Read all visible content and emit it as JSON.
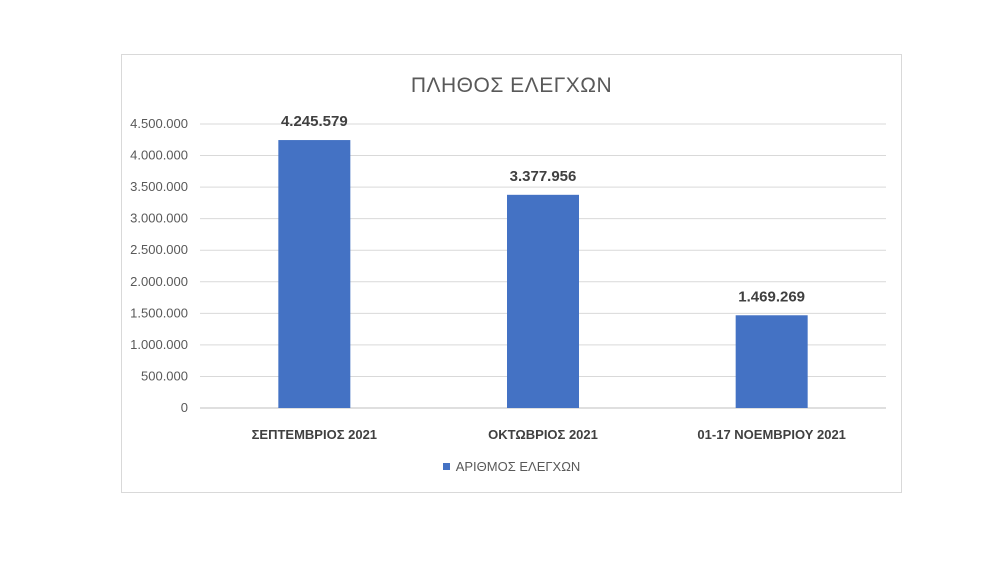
{
  "chart_data": {
    "type": "bar",
    "title": "ΠΛΗΘΟΣ ΕΛΕΓΧΩΝ",
    "categories": [
      "ΣΕΠΤΕΜΒΡΙΟΣ 2021",
      "ΟΚΤΩΒΡΙΟΣ 2021",
      "01-17 ΝΟΕΜΒΡΙΟΥ 2021"
    ],
    "series": [
      {
        "name": "ΑΡΙΘΜΟΣ ΕΛΕΓΧΩΝ",
        "values": [
          4245579,
          3377956,
          1469269
        ],
        "labels": [
          "4.245.579",
          "3.377.956",
          "1.469.269"
        ],
        "color": "#4472c4"
      }
    ],
    "ylim": [
      0,
      4500000
    ],
    "yticks": [
      0,
      500000,
      1000000,
      1500000,
      2000000,
      2500000,
      3000000,
      3500000,
      4000000,
      4500000
    ],
    "ytick_labels": [
      "0",
      "500.000",
      "1.000.000",
      "1.500.000",
      "2.000.000",
      "2.500.000",
      "3.000.000",
      "3.500.000",
      "4.000.000",
      "4.500.000"
    ],
    "grid": true,
    "legend_position": "bottom"
  }
}
